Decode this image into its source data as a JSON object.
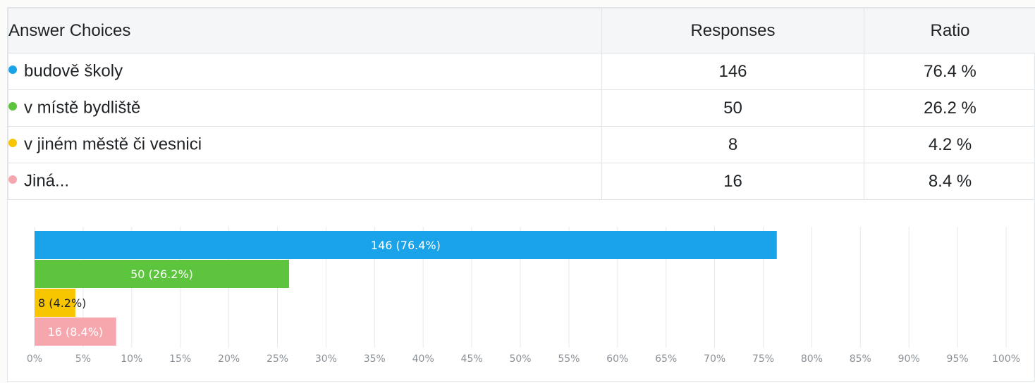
{
  "table": {
    "headers": {
      "choice": "Answer Choices",
      "responses": "Responses",
      "ratio": "Ratio"
    },
    "rows": [
      {
        "label": "budově školy",
        "responses": "146",
        "ratio": "76.4 %",
        "color": "#1aa3e8"
      },
      {
        "label": "v místě bydliště",
        "responses": "50",
        "ratio": "26.2 %",
        "color": "#5cc43d"
      },
      {
        "label": "v jiném městě či vesnici",
        "responses": "8",
        "ratio": "4.2 %",
        "color": "#f7c600"
      },
      {
        "label": "Jiná...",
        "responses": "16",
        "ratio": "8.4 %",
        "color": "#f6a7ae"
      }
    ]
  },
  "chart_data": {
    "type": "bar",
    "orientation": "horizontal",
    "categories": [
      "budově školy",
      "v místě bydliště",
      "v jiném městě či vesnici",
      "Jiná..."
    ],
    "values": [
      76.4,
      26.2,
      4.2,
      8.4
    ],
    "data_labels": [
      "146 (76.4%)",
      "50 (26.2%)",
      "8 (4.2%)",
      "16 (8.4%)"
    ],
    "colors": [
      "#1aa3e8",
      "#5cc43d",
      "#f7c600",
      "#f6a7ae"
    ],
    "xlim": [
      0,
      100
    ],
    "xticks": [
      "0%",
      "5%",
      "10%",
      "15%",
      "20%",
      "25%",
      "30%",
      "35%",
      "40%",
      "45%",
      "50%",
      "55%",
      "60%",
      "65%",
      "70%",
      "75%",
      "80%",
      "85%",
      "90%",
      "95%",
      "100%"
    ],
    "grid": true,
    "title": "",
    "xlabel": "",
    "ylabel": ""
  }
}
